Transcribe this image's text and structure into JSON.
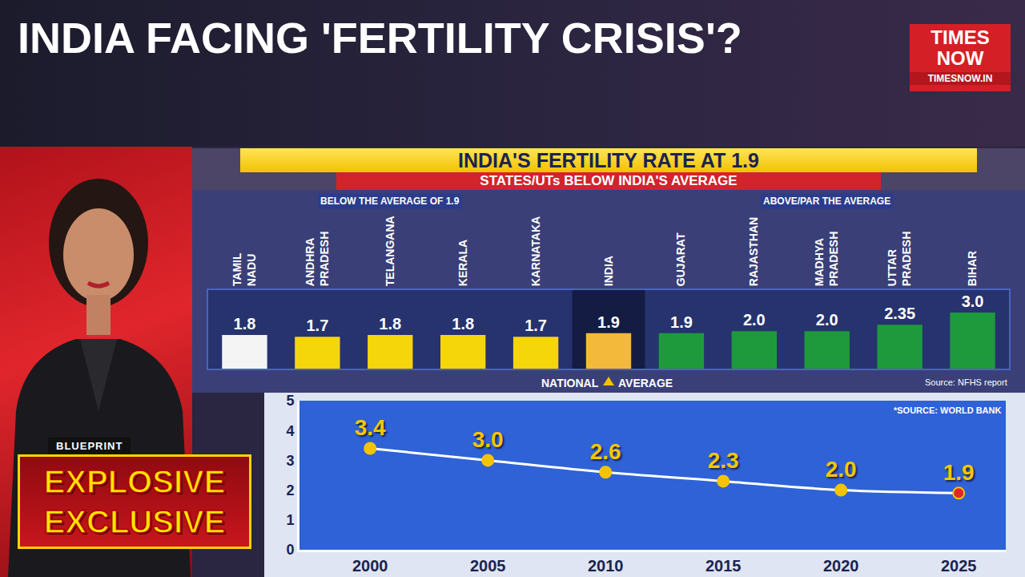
{
  "header": {
    "title": "INDIA FACING 'FERTILITY CRISIS'?",
    "logo": [
      "TIMES",
      "NOW"
    ],
    "url": "TIMESNOW.IN"
  },
  "badge": {
    "label": "BLUEPRINT",
    "lines": [
      "EXPLOSIVE",
      "EXCLUSIVE"
    ]
  },
  "chart_data": [
    {
      "type": "bar",
      "title": "INDIA'S FERTILITY RATE AT 1.9",
      "subtitle": "STATES/UTs BELOW INDIA'S AVERAGE",
      "categories": [
        "TAMIL NADU",
        "ANDHRA PRADESH",
        "TELANGANA",
        "KERALA",
        "KARNATAKA",
        "INDIA",
        "GUJARAT",
        "RAJASTHAN",
        "MADHYA PRADESH",
        "UTTAR PRADESH",
        "BIHAR"
      ],
      "values": [
        1.8,
        1.7,
        1.8,
        1.8,
        1.7,
        1.9,
        1.9,
        2.0,
        2.0,
        2.35,
        3.0
      ],
      "value_labels": [
        "1.8",
        "1.7",
        "1.8",
        "1.8",
        "1.7",
        "1.9",
        "1.9",
        "2.0",
        "2.0",
        "2.35",
        "3.0"
      ],
      "colors": [
        "#f4f4f4",
        "#f5d60a",
        "#f5d60a",
        "#f5d60a",
        "#f5d60a",
        "#f3b93a",
        "#1e9a3c",
        "#1e9a3c",
        "#1e9a3c",
        "#1e9a3c",
        "#1e9a3c"
      ],
      "data_labels": true,
      "ylim": [
        0,
        4.2
      ],
      "yticks": [],
      "grid": false,
      "tick_labels": "x",
      "groups": [
        {
          "label": "BELOW THE AVERAGE OF 1.9",
          "categories": [
            "TAMIL NADU",
            "ANDHRA PRADESH",
            "TELANGANA",
            "KERALA",
            "KARNATAKA"
          ]
        },
        {
          "label": "ABOVE/PAR THE AVERAGE",
          "categories": [
            "GUJARAT",
            "RAJASTHAN",
            "MADHYA PRADESH",
            "UTTAR PRADESH",
            "BIHAR"
          ]
        }
      ],
      "annotations": [
        {
          "text": "NATIONAL AVERAGE",
          "category": "INDIA"
        },
        {
          "text": "Source: NFHS report"
        }
      ]
    },
    {
      "type": "line",
      "x": [
        2000,
        2005,
        2010,
        2015,
        2020,
        2025
      ],
      "values": [
        3.4,
        3.0,
        2.6,
        2.3,
        2.0,
        1.9
      ],
      "value_labels": [
        "3.4",
        "3.0",
        "2.6",
        "2.3",
        "2.0",
        "1.9"
      ],
      "data_labels": true,
      "color": "#ffffff",
      "marker": "circle",
      "xlim": [
        1997,
        2027
      ],
      "xticks": [
        2000,
        2005,
        2010,
        2015,
        2020,
        2025
      ],
      "ylim": [
        0,
        5
      ],
      "yticks": [
        0,
        1,
        2,
        3,
        4,
        5
      ],
      "grid": false,
      "annotations": [
        {
          "text": "*SOURCE: WORLD BANK"
        }
      ]
    }
  ]
}
